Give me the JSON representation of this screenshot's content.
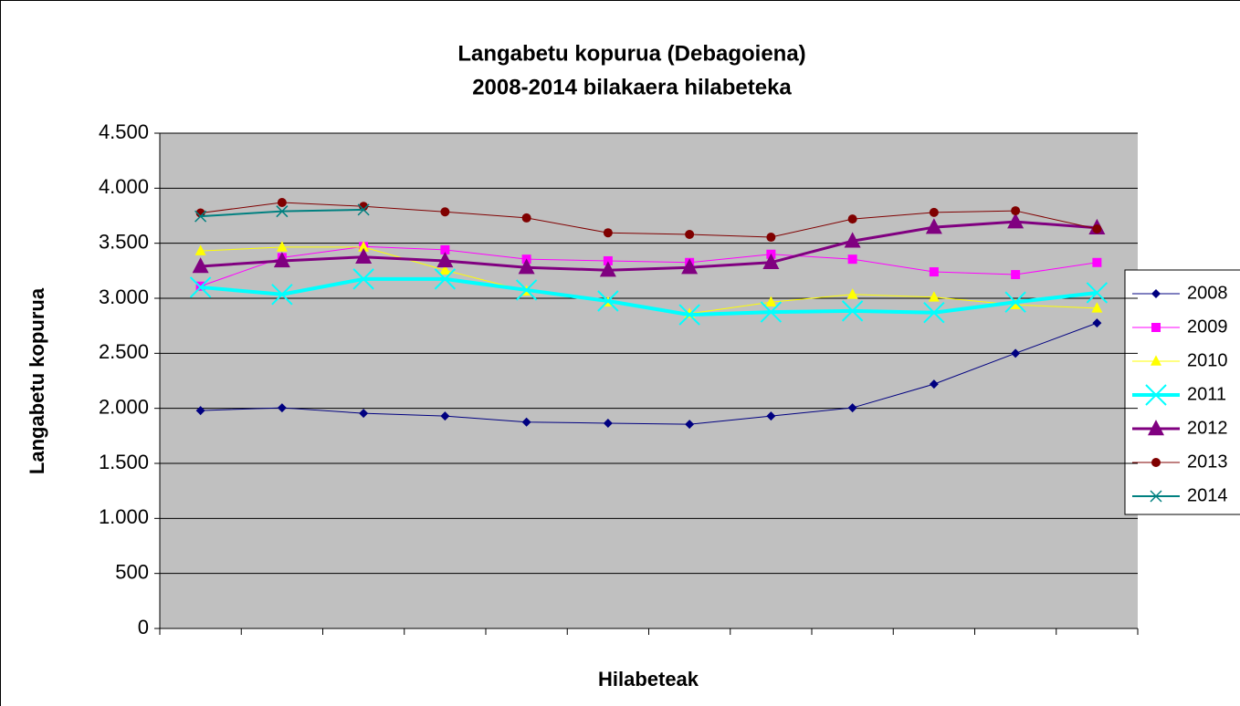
{
  "chart_data": {
    "type": "line",
    "title": "Langabetu kopurua (Debagoiena)",
    "subtitle": "2008-2014 bilakaera hilabeteka",
    "x_label": "Hilabeteak",
    "y_label": "Langabetu kopurua",
    "categories": [
      null,
      null,
      null,
      null,
      null,
      null,
      null,
      null,
      null,
      null,
      null,
      null
    ],
    "ylim": [
      0,
      4500
    ],
    "yticks": [
      0,
      500,
      {
        "value": 1000,
        "label": "1.000"
      },
      {
        "value": 1500,
        "label": "1.500"
      },
      {
        "value": 2000,
        "label": "2.000"
      },
      {
        "value": 2500,
        "label": "2.500"
      },
      {
        "value": 3000,
        "label": "3.000"
      },
      {
        "value": 3500,
        "label": "3.500"
      },
      {
        "value": 4000,
        "label": "4.000"
      },
      {
        "value": 4500,
        "label": "4.500"
      }
    ],
    "grid": true,
    "legend": "right",
    "series": [
      {
        "name": "2008",
        "color": "#000080",
        "marker": "diamond",
        "values": [
          1980,
          2005,
          1955,
          1930,
          1875,
          1865,
          1855,
          1930,
          2005,
          2220,
          2500,
          2775
        ]
      },
      {
        "name": "2009",
        "color": "#ff00ff",
        "marker": "square",
        "values": [
          3110,
          3370,
          3470,
          3440,
          3355,
          3340,
          3325,
          3400,
          3355,
          3240,
          3215,
          3325
        ]
      },
      {
        "name": "2010",
        "color": "#ffff00",
        "marker": "triangle",
        "values": [
          3430,
          3465,
          3465,
          3255,
          3065,
          2965,
          2860,
          2965,
          3035,
          3010,
          2940,
          2910
        ]
      },
      {
        "name": "2011",
        "color": "#00ffff",
        "marker": "x",
        "values": [
          3100,
          3035,
          3175,
          3175,
          3075,
          2975,
          2850,
          2875,
          2885,
          2870,
          2965,
          3050
        ]
      },
      {
        "name": "2012",
        "color": "#800080",
        "marker": "triangle",
        "values": [
          3290,
          3340,
          3375,
          3340,
          3280,
          3255,
          3280,
          3325,
          3520,
          3645,
          3695,
          3640
        ]
      },
      {
        "name": "2013",
        "color": "#800000",
        "marker": "circle",
        "values": [
          3775,
          3870,
          3835,
          3785,
          3730,
          3595,
          3580,
          3555,
          3720,
          3780,
          3795,
          3630
        ]
      },
      {
        "name": "2014",
        "color": "#008080",
        "marker": "x",
        "values": [
          3745,
          3790,
          3805,
          null,
          null,
          null,
          null,
          null,
          null,
          null,
          null,
          null
        ]
      }
    ]
  }
}
